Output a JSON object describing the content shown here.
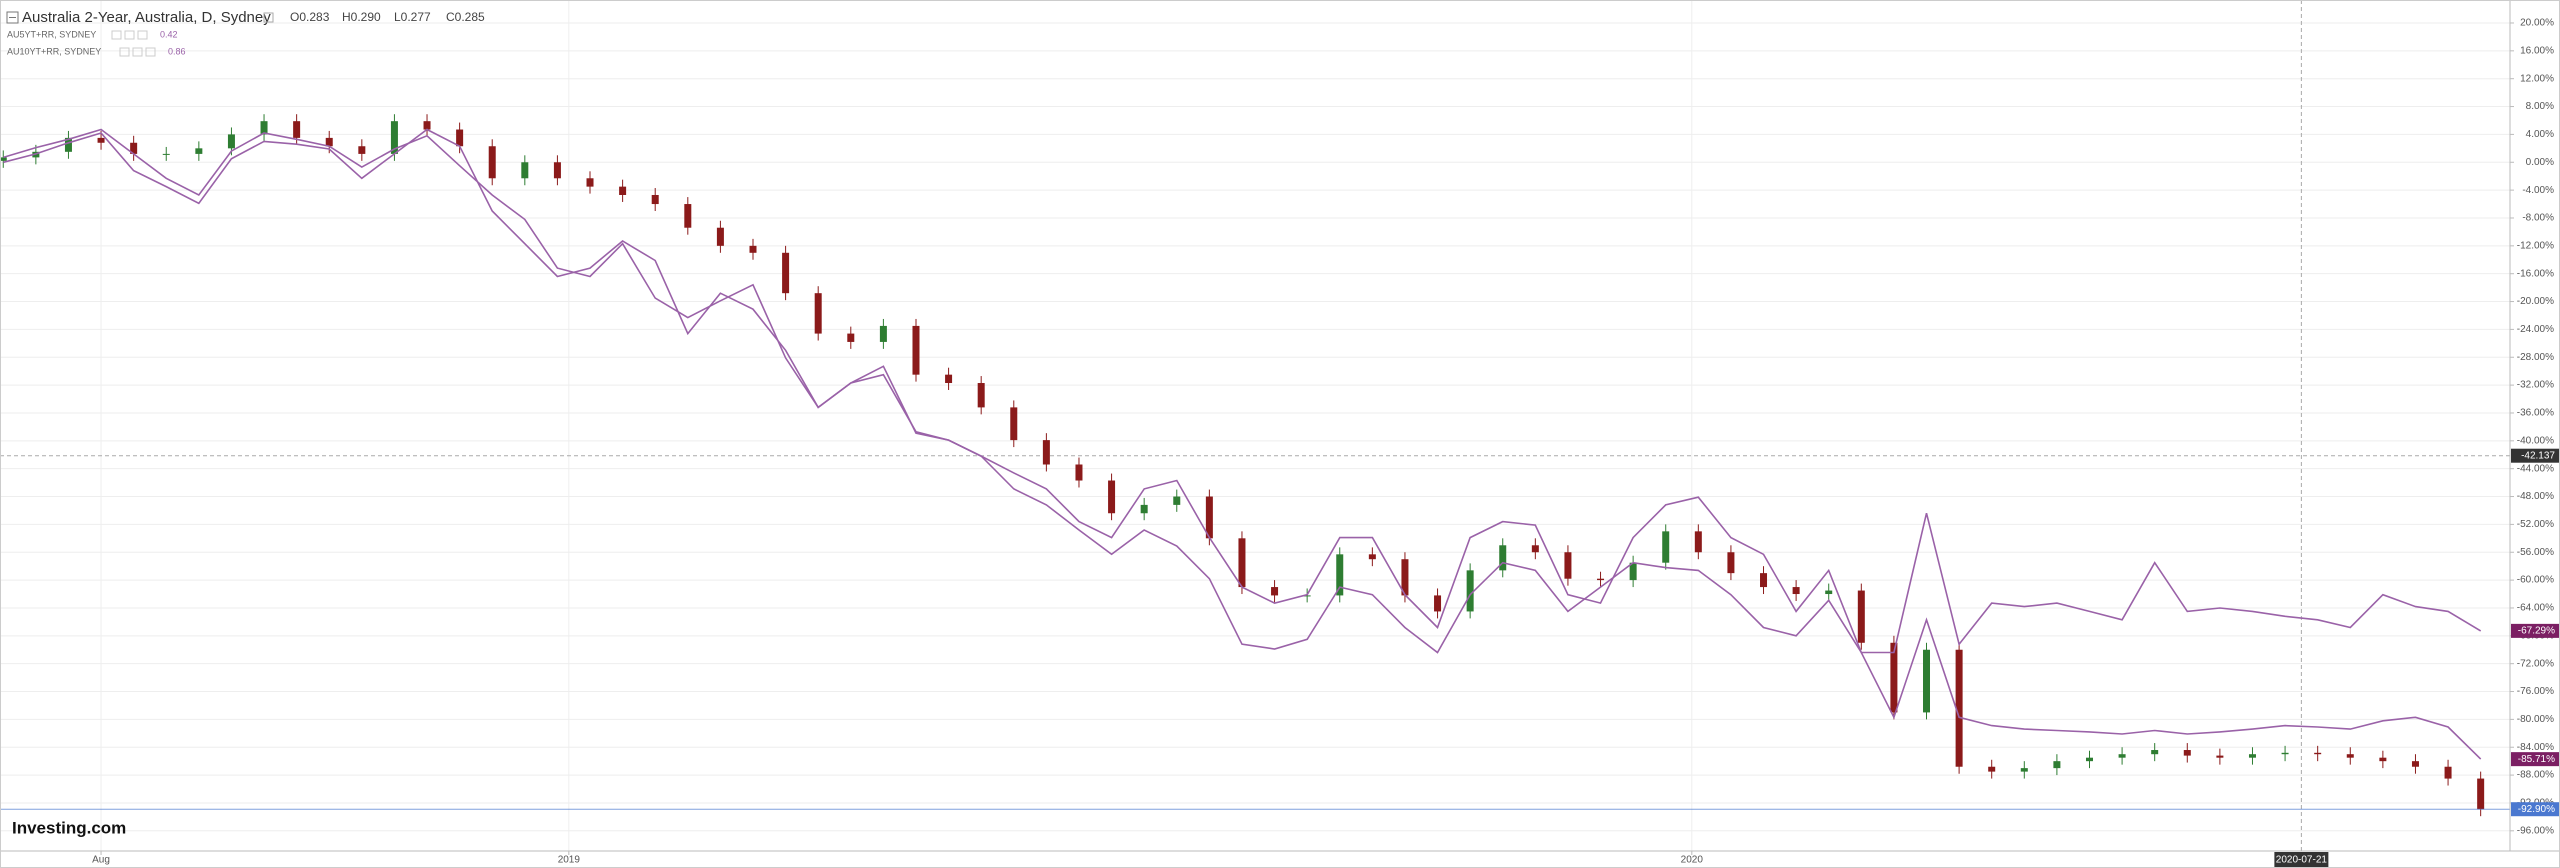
{
  "chart_data": {
    "type": "candlestick",
    "title": "Australia 2-Year, Australia, D, Sydney",
    "ohlc_header": [
      "O0.283",
      "H0.290",
      "L0.277",
      "C0.285"
    ],
    "logo": "Investing.com",
    "xlim": [
      -0.1,
      76.9
    ],
    "ylim": [
      -98.9,
      23.3
    ],
    "xticks": [
      {
        "value": 3,
        "label": "Aug"
      },
      {
        "value": 17.35,
        "label": "2019"
      },
      {
        "value": 51.8,
        "label": "2020"
      }
    ],
    "yticks": [
      {
        "value": 20,
        "label": "20.00%"
      },
      {
        "value": 16,
        "label": "16.00%"
      },
      {
        "value": 12,
        "label": "12.00%"
      },
      {
        "value": 8,
        "label": "8.00%"
      },
      {
        "value": 4,
        "label": "4.00%"
      },
      {
        "value": 0,
        "label": "0.00%"
      },
      {
        "value": -4,
        "label": "-4.00%"
      },
      {
        "value": -8,
        "label": "-8.00%"
      },
      {
        "value": -12,
        "label": "-12.00%"
      },
      {
        "value": -16,
        "label": "-16.00%"
      },
      {
        "value": -20,
        "label": "-20.00%"
      },
      {
        "value": -24,
        "label": "-24.00%"
      },
      {
        "value": -28,
        "label": "-28.00%"
      },
      {
        "value": -32,
        "label": "-32.00%"
      },
      {
        "value": -36,
        "label": "-36.00%"
      },
      {
        "value": -40,
        "label": "-40.00%"
      },
      {
        "value": -44,
        "label": "-44.00%"
      },
      {
        "value": -48,
        "label": "-48.00%"
      },
      {
        "value": -52,
        "label": "-52.00%"
      },
      {
        "value": -56,
        "label": "-56.00%"
      },
      {
        "value": -60,
        "label": "-60.00%"
      },
      {
        "value": -64,
        "label": "-64.00%"
      },
      {
        "value": -68,
        "label": "-68.00%"
      },
      {
        "value": -72,
        "label": "-72.00%"
      },
      {
        "value": -76,
        "label": "-76.00%"
      },
      {
        "value": -80,
        "label": "-80.00%"
      },
      {
        "value": -84,
        "label": "-84.00%"
      },
      {
        "value": -88,
        "label": "-88.00%"
      },
      {
        "value": -92,
        "label": "-92.00%"
      },
      {
        "value": -96,
        "label": "-96.00%"
      }
    ],
    "grid": true,
    "crosshair": {
      "x": {
        "value": 70.5,
        "label": "2020-07-21"
      },
      "y": -42.137
    },
    "series": [
      {
        "type": "candlestick",
        "name": "Australia 2-Year",
        "up_color": "#2e7d32",
        "down_color": "#8b1a1a",
        "label_color": "#4a78d0",
        "last_value_label": "-92.90%",
        "open": [
          0.2,
          0.7,
          1.5,
          3.5,
          2.8,
          1.2,
          1.2,
          2,
          4,
          5.9,
          3.5,
          2.3,
          1.2,
          5.9,
          4.7,
          2.3,
          -2.3,
          0,
          -2.3,
          -3.5,
          -4.7,
          -6,
          -9.4,
          -12,
          -13,
          -18.8,
          -24.6,
          -25.8,
          -23.5,
          -30.5,
          -31.7,
          -35.2,
          -39.9,
          -43.4,
          -45.7,
          -50.4,
          -49.2,
          -48,
          -54,
          -61,
          -62.2,
          -62.2,
          -56.3,
          -57,
          -62.2,
          -64.5,
          -58.6,
          -55,
          -56,
          -59.8,
          -60,
          -57.5,
          -53,
          -56,
          -59,
          -61,
          -62,
          -61.5,
          -69,
          -79,
          -70,
          -86.8,
          -87.5,
          -87,
          -86,
          -85.5,
          -85,
          -84.4,
          -85.2,
          -85.5,
          -85,
          -84.8,
          -85,
          -85.5,
          -86,
          -86.8,
          -88.5
        ],
        "high": [
          1.7,
          2.5,
          4.5,
          4.5,
          3.8,
          2.2,
          3,
          5,
          6.9,
          6.9,
          4.5,
          3.3,
          6.9,
          6.9,
          5.7,
          3.3,
          1,
          1,
          -1.3,
          -2.5,
          -3.7,
          -5,
          -8.4,
          -11,
          -12,
          -17.8,
          -23.6,
          -22.5,
          -22.5,
          -29.5,
          -30.7,
          -34.2,
          -38.9,
          -42.4,
          -44.7,
          -48.2,
          -47,
          -47,
          -53,
          -60,
          -61.2,
          -55.3,
          -55.3,
          -56,
          -61.2,
          -57.6,
          -54,
          -54,
          -55,
          -58.8,
          -56.5,
          -52,
          -52,
          -55,
          -58,
          -60,
          -60.5,
          -60.5,
          -68,
          -69,
          -69,
          -85.8,
          -86,
          -85,
          -84.5,
          -84,
          -83.4,
          -83.4,
          -84.2,
          -84,
          -83.8,
          -83.8,
          -84,
          -84.5,
          -85,
          -85.8,
          -87.5
        ],
        "low": [
          -0.8,
          -0.3,
          0.5,
          1.8,
          0.2,
          0.2,
          0.2,
          1,
          3,
          2.5,
          1.3,
          0.2,
          0.2,
          3.7,
          1.3,
          -3.3,
          -3.3,
          -3.3,
          -4.5,
          -5.7,
          -7,
          -10.4,
          -13,
          -14,
          -19.8,
          -25.6,
          -26.8,
          -26.8,
          -31.5,
          -32.7,
          -36.2,
          -40.9,
          -44.4,
          -46.7,
          -51.4,
          -51.4,
          -50.2,
          -55,
          -62,
          -63.2,
          -63.2,
          -63.2,
          -58,
          -63.2,
          -65.5,
          -65.5,
          -59.6,
          -57,
          -60.8,
          -61,
          -61,
          -58.5,
          -57,
          -60,
          -62,
          -63,
          -63,
          -70,
          -80,
          -80,
          -87.8,
          -88.5,
          -88.5,
          -88,
          -87,
          -86.5,
          -86,
          -86.2,
          -86.5,
          -86.5,
          -86,
          -86,
          -86.5,
          -87,
          -87.8,
          -89.5,
          -93.9
        ],
        "close": [
          0.7,
          1.5,
          3.5,
          2.8,
          1.2,
          1.2,
          2,
          4,
          5.9,
          3.5,
          2.3,
          1.2,
          5.9,
          4.7,
          2.3,
          -2.3,
          0,
          -2.3,
          -3.5,
          -4.7,
          -6,
          -9.4,
          -12,
          -13,
          -18.8,
          -24.6,
          -25.8,
          -23.5,
          -30.5,
          -31.7,
          -35.2,
          -39.9,
          -43.4,
          -45.7,
          -50.4,
          -49.2,
          -48,
          -54,
          -61,
          -62.2,
          -62.2,
          -56.3,
          -57,
          -62.2,
          -64.5,
          -58.6,
          -55,
          -56,
          -59.8,
          -60,
          -57.5,
          -53,
          -56,
          -59,
          -61,
          -62,
          -61.5,
          -69,
          -79,
          -70,
          -86.8,
          -87.5,
          -87,
          -86,
          -85.5,
          -85,
          -84.4,
          -85.2,
          -85.5,
          -85,
          -84.8,
          -85,
          -85.5,
          -86,
          -86.8,
          -88.5,
          -92.9
        ]
      },
      {
        "type": "line",
        "name": "AU5YT+RR, SYDNEY",
        "legend_value": "0.42",
        "color": "#9a62a8",
        "label_color": "#7b1f63",
        "last_value_label": "-67.29%",
        "values": [
          0.7,
          2.1,
          3.3,
          4.7,
          1.2,
          -2.3,
          -4.7,
          1.6,
          4.2,
          3.3,
          2.3,
          -0.7,
          1.9,
          3.8,
          -0.5,
          -4.7,
          -8.2,
          -15.2,
          -16.4,
          -11.7,
          -19.5,
          -22.3,
          -19.9,
          -17.6,
          -28.1,
          -35.2,
          -31.7,
          -30.5,
          -38.7,
          -39.9,
          -42.2,
          -44.6,
          -46.9,
          -51.6,
          -53.9,
          -46.9,
          -45.7,
          -53.9,
          -61,
          -63.3,
          -62.1,
          -53.9,
          -53.9,
          -62.1,
          -66.8,
          -53.9,
          -51.6,
          -52.1,
          -62.1,
          -63.3,
          -53.9,
          -49.2,
          -48.1,
          -53.9,
          -56.3,
          -64.5,
          -58.6,
          -70.4,
          -70.4,
          -50.4,
          -69.2,
          -63.3,
          -63.8,
          -63.3,
          -64.5,
          -65.7,
          -57.5,
          -64.5,
          -64,
          -64.5,
          -65.2,
          -65.7,
          -66.8,
          -62.1,
          -63.8,
          -64.5,
          -67.29
        ]
      },
      {
        "type": "line",
        "name": "AU10YT+RR, SYDNEY",
        "legend_value": "0.86",
        "color": "#9a62a8",
        "label_color": "#7b1f63",
        "last_value_label": "-85.71%",
        "values": [
          0,
          1.2,
          2.8,
          4.2,
          -1.2,
          -3.5,
          -5.9,
          0.5,
          3,
          2.6,
          1.9,
          -2.3,
          1.2,
          4.7,
          2.3,
          -7,
          -11.7,
          -16.4,
          -15.2,
          -11.3,
          -14.1,
          -24.6,
          -18.8,
          -21.1,
          -27,
          -35.2,
          -31.7,
          -29.3,
          -38.9,
          -39.9,
          -42.2,
          -46.9,
          -49.2,
          -52.8,
          -56.3,
          -52.8,
          -55.1,
          -59.8,
          -69.2,
          -69.9,
          -68.5,
          -61,
          -62.1,
          -66.8,
          -70.4,
          -62.1,
          -57.5,
          -58.6,
          -64.5,
          -61,
          -57.5,
          -58.2,
          -58.6,
          -62.1,
          -66.8,
          -68,
          -62.9,
          -70.4,
          -79.7,
          -65.7,
          -79.7,
          -80.9,
          -81.4,
          -81.6,
          -81.8,
          -82.1,
          -81.6,
          -82.1,
          -81.8,
          -81.4,
          -80.9,
          -81.1,
          -81.4,
          -80.2,
          -79.7,
          -81.1,
          -85.71
        ]
      }
    ]
  }
}
